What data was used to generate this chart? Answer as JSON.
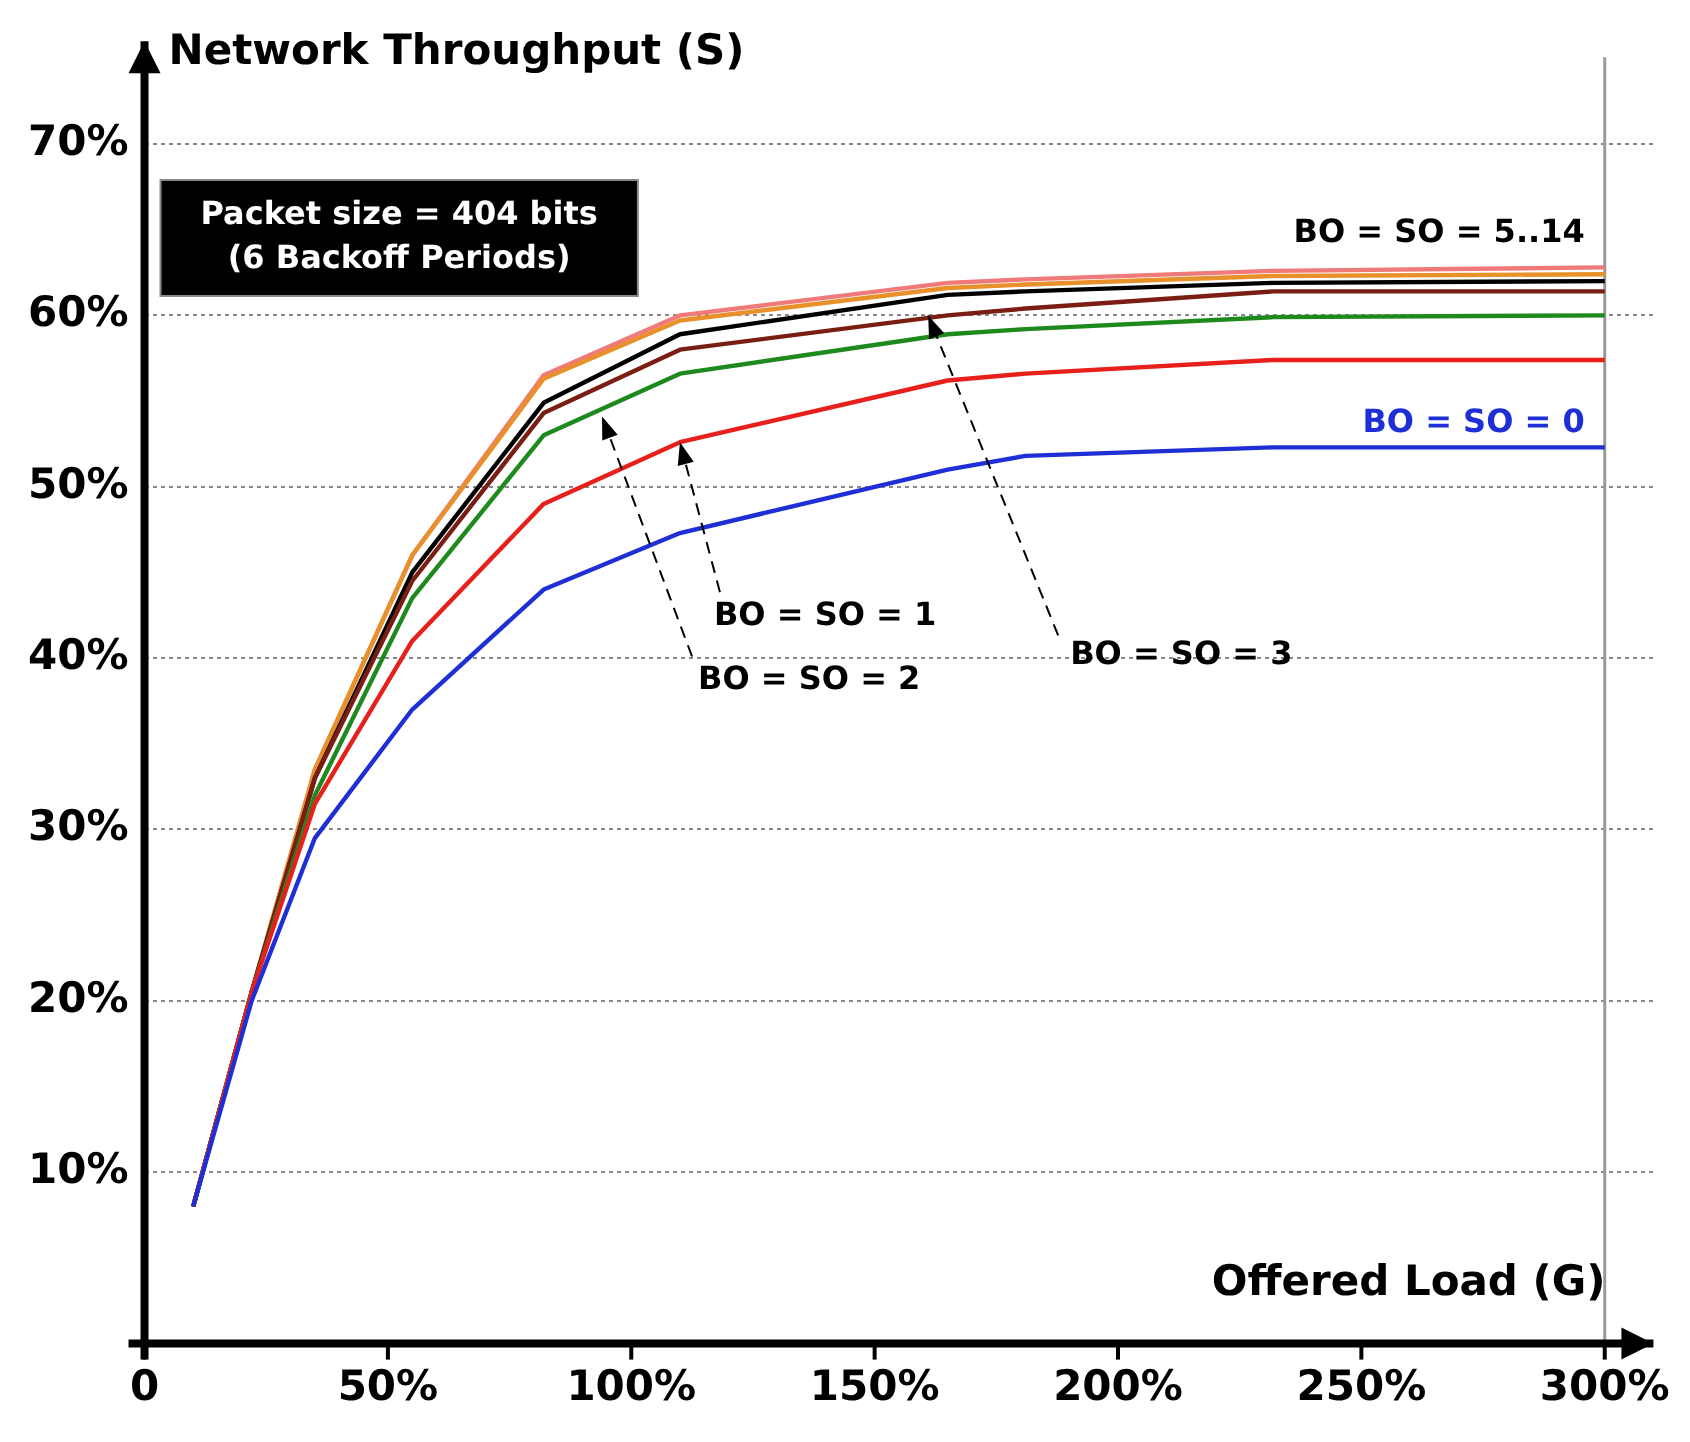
{
  "chart_data": {
    "type": "line",
    "xlabel": "Offered Load (G)",
    "ylabel": "Network Throughput (S)",
    "x": [
      10,
      22,
      35,
      55,
      82,
      110,
      165,
      181,
      232,
      300
    ],
    "series": [
      {
        "color": "#1f2fd6",
        "values": [
          8,
          20,
          29.5,
          37,
          44,
          47.3,
          51,
          51.8,
          52.3,
          52.3
        ]
      },
      {
        "color": "#e8201c",
        "values": [
          8,
          20.5,
          31.5,
          41,
          49,
          52.6,
          56.2,
          56.6,
          57.4,
          57.4
        ]
      },
      {
        "color": "#1e8a1e",
        "values": [
          8,
          20.5,
          32,
          43.5,
          53,
          56.6,
          58.9,
          59.2,
          59.9,
          60
        ]
      },
      {
        "color": "#7a1e14",
        "values": [
          8,
          20.5,
          33,
          44.5,
          54.3,
          58,
          60,
          60.4,
          61.4,
          61.4
        ]
      },
      {
        "color": "#000000",
        "values": [
          8,
          20.5,
          33,
          45,
          54.9,
          58.9,
          61.2,
          61.4,
          61.9,
          62
        ]
      },
      {
        "color": "#e8902a",
        "values": [
          8,
          20.5,
          33.5,
          46,
          56.3,
          59.7,
          61.6,
          61.8,
          62.3,
          62.4
        ]
      },
      {
        "color": "#f07a7a",
        "values": [
          8,
          20.5,
          33.5,
          46,
          56.5,
          60,
          61.9,
          62.1,
          62.6,
          62.8
        ]
      }
    ],
    "xlim": [
      0,
      310
    ],
    "ylim": [
      0,
      76
    ],
    "xticks": [
      {
        "value": 0,
        "label": "0"
      },
      {
        "value": 50,
        "label": "50%"
      },
      {
        "value": 100,
        "label": "100%"
      },
      {
        "value": 150,
        "label": "150%"
      },
      {
        "value": 200,
        "label": "200%"
      },
      {
        "value": 250,
        "label": "250%"
      },
      {
        "value": 300,
        "label": "300%"
      }
    ],
    "yticks": [
      {
        "value": 10,
        "label": "10%"
      },
      {
        "value": 20,
        "label": "20%"
      },
      {
        "value": 30,
        "label": "30%"
      },
      {
        "value": 40,
        "label": "40%"
      },
      {
        "value": 50,
        "label": "50%"
      },
      {
        "value": 60,
        "label": "60%"
      },
      {
        "value": 70,
        "label": "70%"
      }
    ],
    "grid": "y",
    "legend": false,
    "marker": "none",
    "line_style": "solid",
    "ref_lines": [
      {
        "axis": "x",
        "value": 300,
        "color": "#999999"
      }
    ],
    "annotations": [
      "Packet size = 404 bits\n(6 Backoff Periods)",
      {
        "text": "BO = SO = 5..14",
        "x": 300,
        "y": 62.8
      },
      {
        "text": "BO = SO = 0",
        "x": 300,
        "y": 52.3
      },
      {
        "text": "BO = SO = 1",
        "x": 110,
        "y": 52.6
      },
      {
        "text": "BO = SO = 2",
        "x": 94,
        "y": 54.1
      },
      {
        "text": "BO = SO = 3",
        "x": 161,
        "y": 60
      }
    ]
  }
}
